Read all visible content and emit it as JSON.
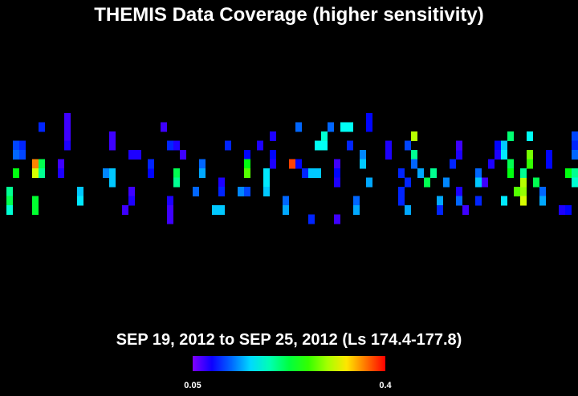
{
  "title": "THEMIS Data Coverage (higher sensitivity)",
  "subtitle": "SEP 19, 2012 to SEP 25, 2012 (Ls 174.4-177.8)",
  "colorbar": {
    "min": 0.05,
    "max": 0.4
  },
  "cells": [
    [
      1,
      8,
      0.2
    ],
    [
      1,
      9,
      0.22
    ],
    [
      1,
      10,
      0.18
    ],
    [
      2,
      3,
      0.11
    ],
    [
      2,
      4,
      0.12
    ],
    [
      2,
      6,
      0.24
    ],
    [
      3,
      3,
      0.1
    ],
    [
      3,
      4,
      0.11
    ],
    [
      5,
      5,
      0.36
    ],
    [
      5,
      6,
      0.31
    ],
    [
      6,
      1,
      0.1
    ],
    [
      6,
      5,
      0.22
    ],
    [
      6,
      6,
      0.2
    ],
    [
      5,
      9,
      0.23
    ],
    [
      5,
      10,
      0.23
    ],
    [
      10,
      0,
      0.07
    ],
    [
      10,
      1,
      0.07
    ],
    [
      10,
      2,
      0.07
    ],
    [
      10,
      3,
      0.08
    ],
    [
      9,
      5,
      0.07
    ],
    [
      9,
      6,
      0.08
    ],
    [
      12,
      8,
      0.15
    ],
    [
      12,
      9,
      0.16
    ],
    [
      17,
      2,
      0.07
    ],
    [
      17,
      3,
      0.07
    ],
    [
      16,
      6,
      0.13
    ],
    [
      17,
      6,
      0.15
    ],
    [
      17,
      7,
      0.15
    ],
    [
      20,
      4,
      0.08
    ],
    [
      21,
      4,
      0.08
    ],
    [
      20,
      8,
      0.07
    ],
    [
      20,
      9,
      0.08
    ],
    [
      19,
      10,
      0.07
    ],
    [
      23,
      6,
      0.09
    ],
    [
      23,
      5,
      0.1
    ],
    [
      25,
      1,
      0.07
    ],
    [
      26,
      3,
      0.1
    ],
    [
      27,
      3,
      0.08
    ],
    [
      28,
      4,
      0.07
    ],
    [
      27,
      6,
      0.22
    ],
    [
      27,
      7,
      0.2
    ],
    [
      26,
      9,
      0.08
    ],
    [
      26,
      10,
      0.07
    ],
    [
      26,
      11,
      0.07
    ],
    [
      30,
      8,
      0.12
    ],
    [
      31,
      5,
      0.12
    ],
    [
      31,
      6,
      0.14
    ],
    [
      33,
      10,
      0.15
    ],
    [
      34,
      10,
      0.15
    ],
    [
      35,
      3,
      0.1
    ],
    [
      34,
      7,
      0.08
    ],
    [
      34,
      8,
      0.1
    ],
    [
      38,
      4,
      0.09
    ],
    [
      38,
      5,
      0.24
    ],
    [
      38,
      6,
      0.27
    ],
    [
      40,
      3,
      0.08
    ],
    [
      37,
      8,
      0.13
    ],
    [
      38,
      8,
      0.11
    ],
    [
      41,
      6,
      0.16
    ],
    [
      41,
      7,
      0.16
    ],
    [
      41,
      8,
      0.15
    ],
    [
      42,
      2,
      0.08
    ],
    [
      42,
      4,
      0.09
    ],
    [
      42,
      5,
      0.08
    ],
    [
      44,
      9,
      0.12
    ],
    [
      44,
      10,
      0.14
    ],
    [
      45,
      5,
      0.38
    ],
    [
      46,
      5,
      0.09
    ],
    [
      47,
      6,
      0.1
    ],
    [
      46,
      1,
      0.12
    ],
    [
      48,
      6,
      0.15
    ],
    [
      49,
      6,
      0.15
    ],
    [
      48,
      11,
      0.1
    ],
    [
      49,
      3,
      0.17
    ],
    [
      50,
      3,
      0.17
    ],
    [
      50,
      2,
      0.18
    ],
    [
      51,
      1,
      0.12
    ],
    [
      53,
      1,
      0.17
    ],
    [
      54,
      1,
      0.17
    ],
    [
      52,
      5,
      0.07
    ],
    [
      52,
      6,
      0.09
    ],
    [
      52,
      7,
      0.08
    ],
    [
      54,
      3,
      0.1
    ],
    [
      55,
      9,
      0.12
    ],
    [
      55,
      10,
      0.14
    ],
    [
      52,
      11,
      0.07
    ],
    [
      57,
      0,
      0.09
    ],
    [
      57,
      1,
      0.09
    ],
    [
      56,
      4,
      0.13
    ],
    [
      56,
      5,
      0.15
    ],
    [
      60,
      3,
      0.08
    ],
    [
      60,
      4,
      0.08
    ],
    [
      57,
      7,
      0.14
    ],
    [
      62,
      6,
      0.1
    ],
    [
      63,
      7,
      0.1
    ],
    [
      63,
      3,
      0.11
    ],
    [
      64,
      2,
      0.3
    ],
    [
      64,
      4,
      0.2
    ],
    [
      64,
      5,
      0.12
    ],
    [
      65,
      6,
      0.14
    ],
    [
      62,
      8,
      0.1
    ],
    [
      62,
      9,
      0.1
    ],
    [
      63,
      10,
      0.14
    ],
    [
      66,
      7,
      0.22
    ],
    [
      67,
      6,
      0.2
    ],
    [
      68,
      9,
      0.14
    ],
    [
      68,
      10,
      0.1
    ],
    [
      70,
      5,
      0.1
    ],
    [
      71,
      4,
      0.08
    ],
    [
      71,
      3,
      0.07
    ],
    [
      69,
      7,
      0.13
    ],
    [
      71,
      8,
      0.08
    ],
    [
      71,
      9,
      0.12
    ],
    [
      74,
      6,
      0.12
    ],
    [
      74,
      7,
      0.15
    ],
    [
      75,
      7,
      0.07
    ],
    [
      72,
      10,
      0.07
    ],
    [
      74,
      9,
      0.1
    ],
    [
      76,
      5,
      0.08
    ],
    [
      77,
      3,
      0.09
    ],
    [
      77,
      4,
      0.08
    ],
    [
      78,
      3,
      0.15
    ],
    [
      78,
      4,
      0.16
    ],
    [
      79,
      5,
      0.22
    ],
    [
      79,
      6,
      0.24
    ],
    [
      78,
      9,
      0.16
    ],
    [
      79,
      2,
      0.21
    ],
    [
      81,
      8,
      0.29
    ],
    [
      81,
      9,
      0.31
    ],
    [
      80,
      8,
      0.27
    ],
    [
      81,
      7,
      0.3
    ],
    [
      81,
      6,
      0.2
    ],
    [
      82,
      2,
      0.17
    ],
    [
      82,
      4,
      0.28
    ],
    [
      82,
      5,
      0.26
    ],
    [
      83,
      7,
      0.22
    ],
    [
      85,
      4,
      0.09
    ],
    [
      85,
      5,
      0.09
    ],
    [
      84,
      8,
      0.12
    ],
    [
      84,
      9,
      0.14
    ],
    [
      87,
      10,
      0.08
    ],
    [
      88,
      10,
      0.09
    ],
    [
      89,
      2,
      0.11
    ],
    [
      89,
      3,
      0.1
    ],
    [
      89,
      4,
      0.12
    ],
    [
      88,
      6,
      0.24
    ],
    [
      89,
      6,
      0.2
    ],
    [
      89,
      7,
      0.18
    ]
  ]
}
